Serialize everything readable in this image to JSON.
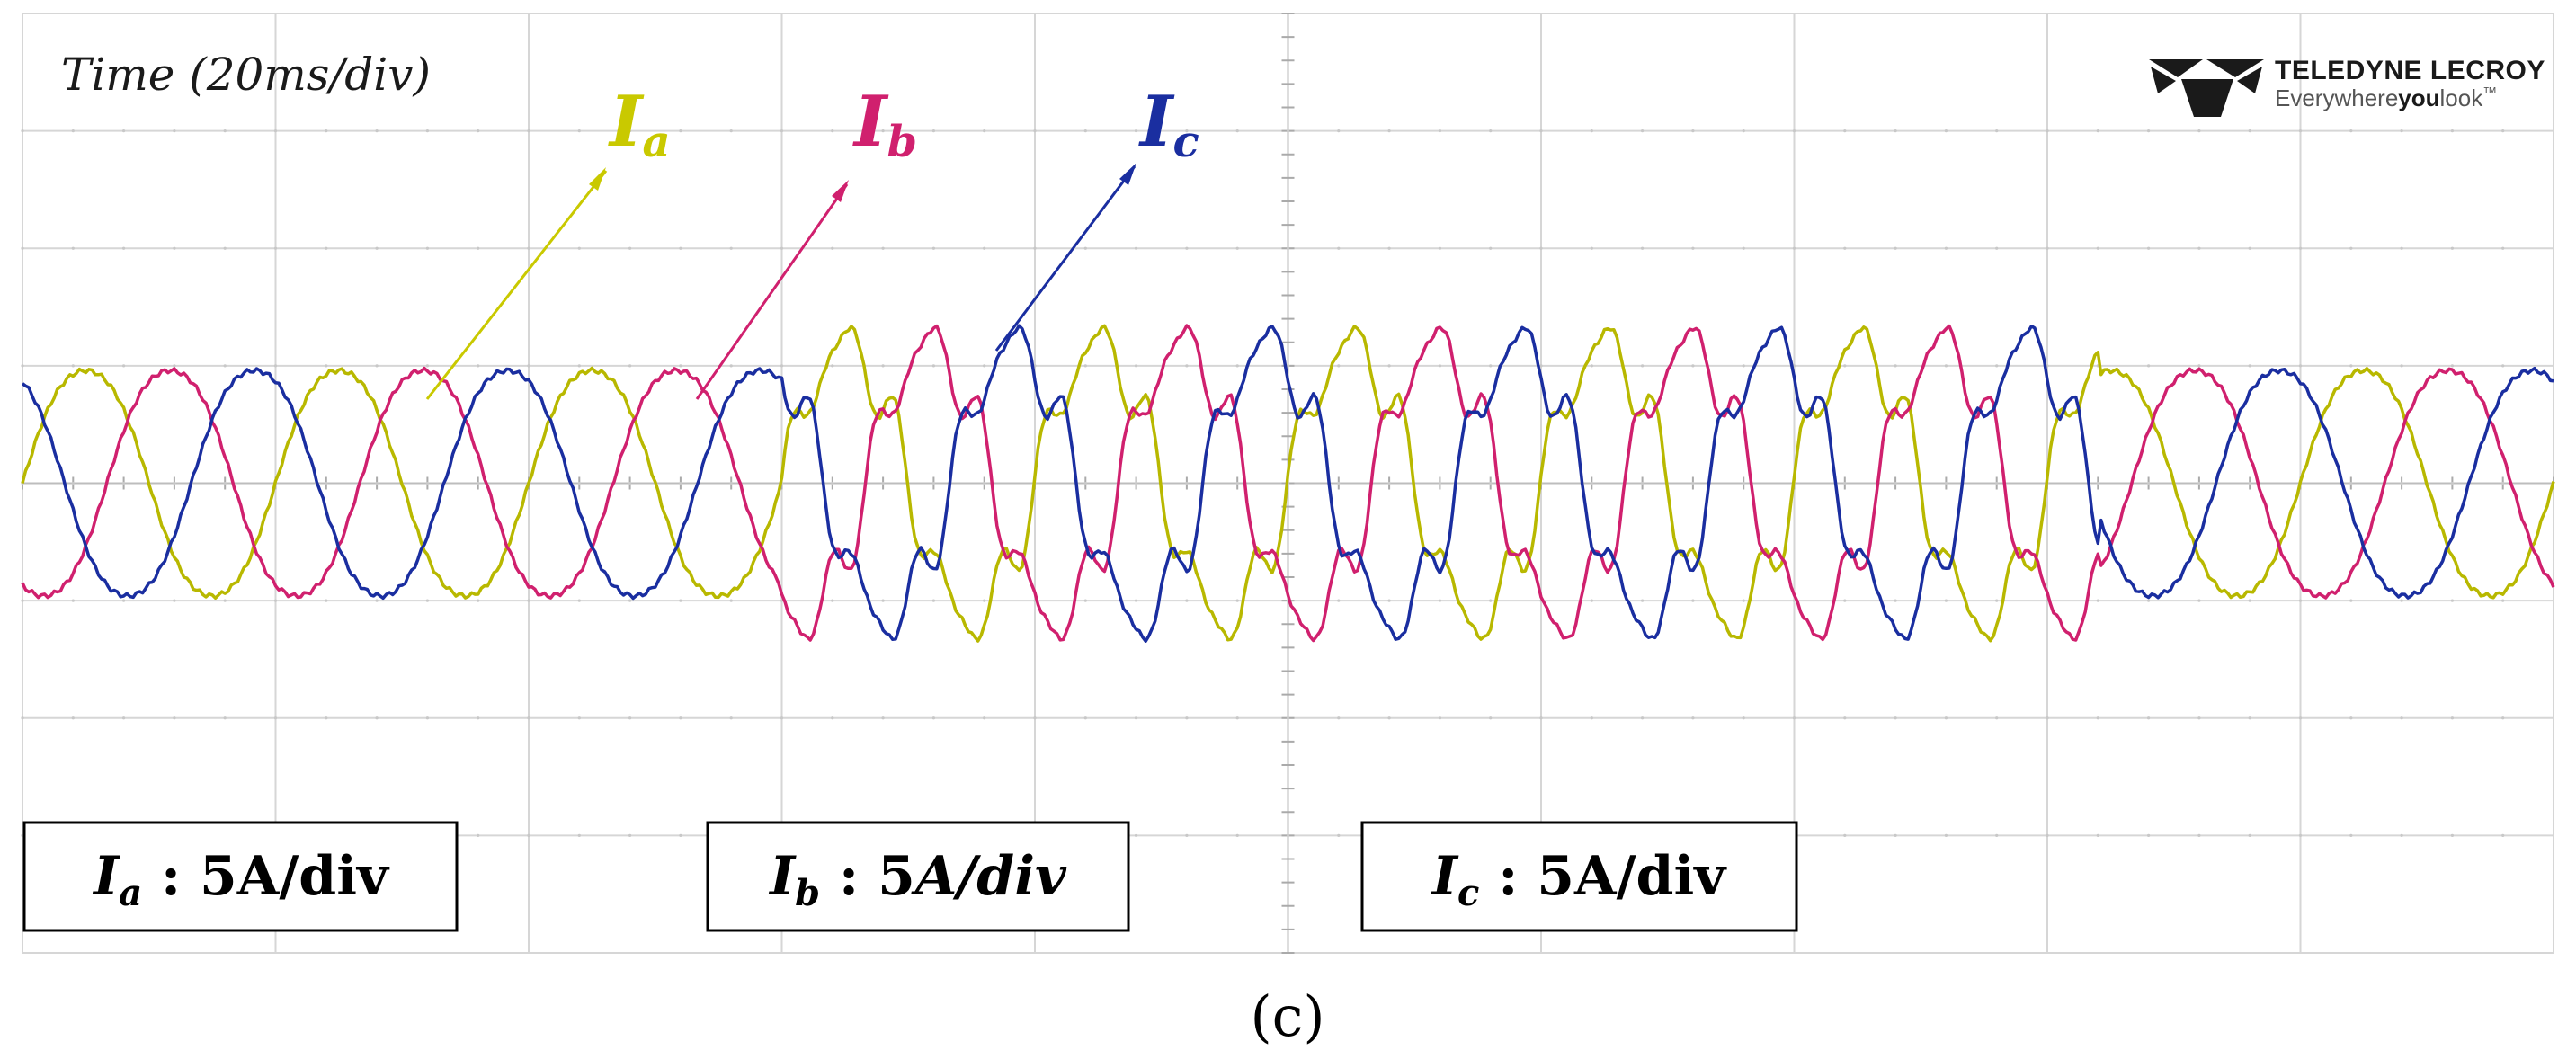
{
  "chart_data": {
    "type": "line",
    "title": "",
    "time_label": "Time (20ms/div)",
    "divisions": {
      "x": 10,
      "y": 8
    },
    "time_per_division_ms": 20,
    "xlim_ms": [
      0,
      200
    ],
    "ylim_div": [
      -4,
      4
    ],
    "grid": true,
    "series": [
      {
        "name": "Ia",
        "base": "I",
        "sub": "a",
        "color": "#b8b800",
        "label_color": "#c9c900",
        "scale_label": {
          "base": "I",
          "sub": "a",
          "text": " : 5A/div",
          "italic": false
        },
        "amplitude_div": 1,
        "frequency_hz": 50,
        "phase_deg": 0
      },
      {
        "name": "Ib",
        "base": "I",
        "sub": "b",
        "color": "#d0206e",
        "label_color": "#d0206e",
        "scale_label": {
          "base": "I",
          "sub": "b",
          "text": " : 5",
          "unit": "A/div",
          "italic": true
        },
        "amplitude_div": 1,
        "frequency_hz": 50,
        "phase_deg": -120
      },
      {
        "name": "Ic",
        "base": "I",
        "sub": "c",
        "color": "#1a2ea0",
        "label_color": "#1a2ea0",
        "scale_label": {
          "base": "I",
          "sub": "c",
          "text": " : 5A/div",
          "italic": false
        },
        "amplitude_div": 1,
        "frequency_hz": 50,
        "phase_deg": 120
      }
    ],
    "disturbance_ms": [
      60,
      164
    ],
    "disturbance_amplitude_div": 1.35
  },
  "brand": {
    "name": "TELEDYNE LECROY",
    "tag_pre": "Everywhere",
    "tag_bold": "you",
    "tag_post": "look",
    "tm": "™"
  },
  "caption": "(c)"
}
